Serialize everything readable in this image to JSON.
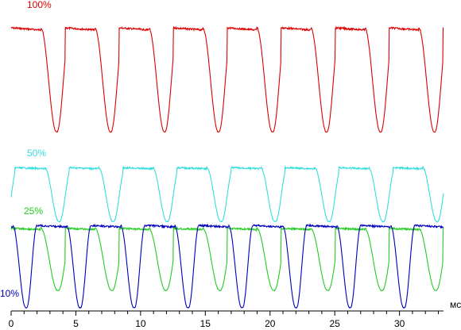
{
  "chart_data": {
    "type": "line",
    "xlabel": "мс",
    "xlim": [
      0,
      33.4
    ],
    "x_ticks": [
      0,
      5,
      10,
      15,
      20,
      25,
      30
    ],
    "grid": false,
    "period_ms": 4.17,
    "series": [
      {
        "name": "100%",
        "color": "#dd0000",
        "high": 0.92,
        "low": 0.12,
        "phase_ms": 0.0,
        "rise_ms": 1.0,
        "fall_ms": 1.2
      },
      {
        "name": "50%",
        "color": "#33dddd",
        "high": 0.92,
        "low": 0.18,
        "phase_ms": 0.3,
        "rise_ms": 0.9,
        "fall_ms": 1.1
      },
      {
        "name": "25%",
        "color": "#22cc22",
        "high": 0.92,
        "low": 0.12,
        "phase_ms": 0.0,
        "rise_ms": 1.1,
        "fall_ms": 1.3
      },
      {
        "name": "10%",
        "color": "#0000bb",
        "high": 0.98,
        "low": 0.02,
        "phase_ms": 2.0,
        "rise_ms": 0.8,
        "fall_ms": 1.0
      }
    ]
  }
}
